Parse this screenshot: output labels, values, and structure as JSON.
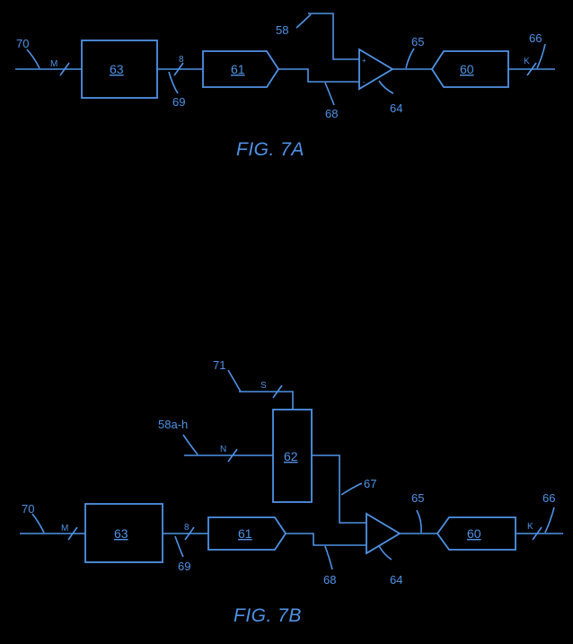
{
  "colors": {
    "background": "#000000",
    "ink": "#4f93e6"
  },
  "fig_a": {
    "caption": "FIG. 7A",
    "blocks": {
      "b63": "63",
      "b61": "61",
      "b60": "60"
    },
    "bus_labels": {
      "in": "M",
      "mid": "8",
      "out": "K"
    },
    "refs": {
      "r70": "70",
      "r69": "69",
      "r58": "58",
      "r68": "68",
      "r65": "65",
      "r64": "64",
      "r66": "66"
    },
    "amp_signs": {
      "plus": "+",
      "minus": "-"
    }
  },
  "fig_b": {
    "caption": "FIG. 7B",
    "blocks": {
      "b62": "62",
      "b63": "63",
      "b61": "61",
      "b60": "60"
    },
    "bus_labels": {
      "s": "S",
      "n": "N",
      "in": "M",
      "mid": "8",
      "out": "K"
    },
    "refs": {
      "r71": "71",
      "r58": "58a-h",
      "r67": "67",
      "r65": "65",
      "r66": "66",
      "r70": "70",
      "r69": "69",
      "r68": "68",
      "r64": "64"
    }
  }
}
